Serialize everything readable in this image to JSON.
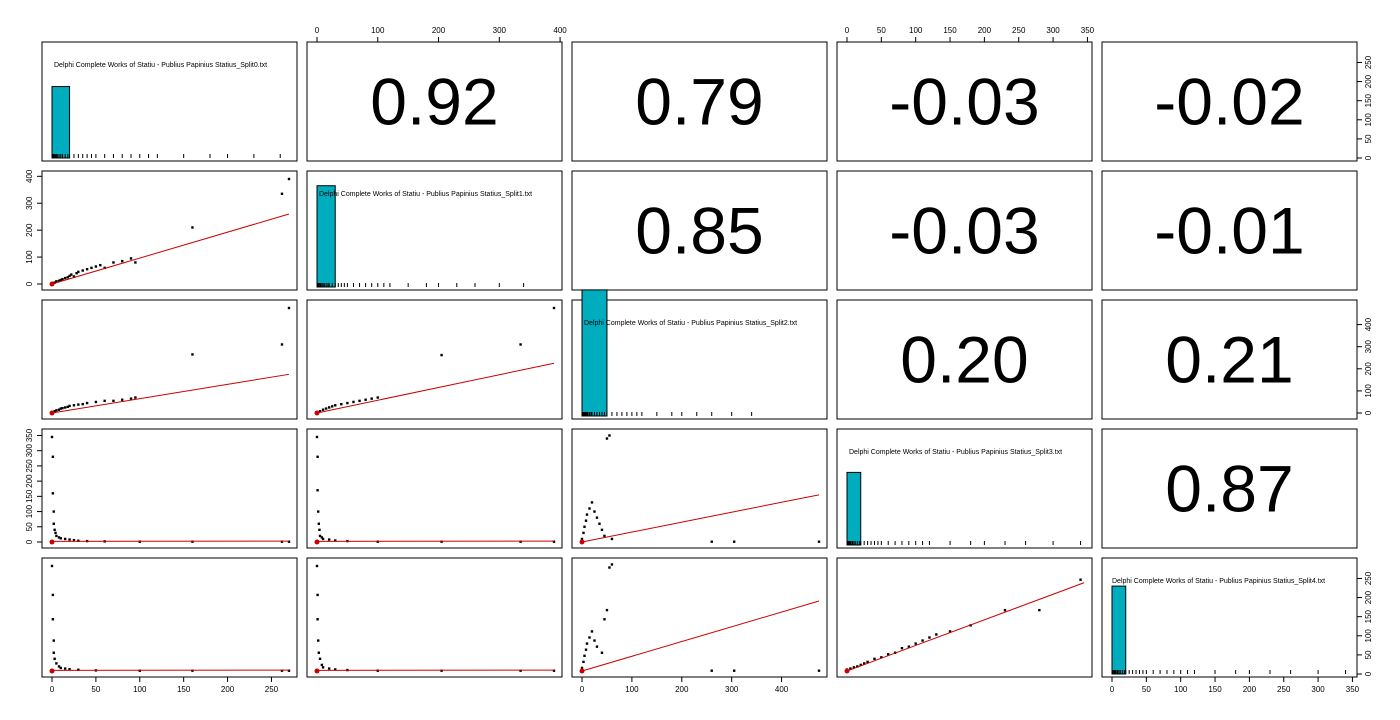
{
  "chart_data": {
    "type": "scatter",
    "plot_kind": "pairs-matrix",
    "variables": [
      {
        "name": "Delphi Complete Works of Statiu - Publius Papinius Statius_Split0.txt",
        "max": 270,
        "ticks": [
          0,
          50,
          100,
          150,
          200,
          250
        ]
      },
      {
        "name": "Delphi Complete Works of Statiu - Publius Papinius Statius_Split1.txt",
        "max": 390,
        "ticks": [
          0,
          100,
          200,
          300,
          400
        ]
      },
      {
        "name": "Delphi Complete Works of Statiu - Publius Papinius Statius_Split2.txt",
        "max": 475,
        "ticks": [
          0,
          100,
          200,
          300,
          400
        ]
      },
      {
        "name": "Delphi Complete Works of Statiu - Publius Papinius Statius_Split3.txt",
        "max": 345,
        "ticks": [
          0,
          50,
          100,
          150,
          200,
          250,
          300,
          350
        ]
      },
      {
        "name": "Delphi Complete Works of Statiu - Publius Papinius Statius_Split4.txt",
        "max": 345,
        "ticks": [
          0,
          50,
          100,
          150,
          200,
          250,
          300,
          350
        ]
      }
    ],
    "correlations": [
      {
        "row": 0,
        "col": 1,
        "value": "0.92"
      },
      {
        "row": 0,
        "col": 2,
        "value": "0.79"
      },
      {
        "row": 0,
        "col": 3,
        "value": "-0.03"
      },
      {
        "row": 0,
        "col": 4,
        "value": "-0.02"
      },
      {
        "row": 1,
        "col": 2,
        "value": "0.85"
      },
      {
        "row": 1,
        "col": 3,
        "value": "-0.03"
      },
      {
        "row": 1,
        "col": 4,
        "value": "-0.01"
      },
      {
        "row": 2,
        "col": 3,
        "value": "0.20"
      },
      {
        "row": 2,
        "col": 4,
        "value": "0.21"
      },
      {
        "row": 3,
        "col": 4,
        "value": "0.87"
      }
    ],
    "histograms": [
      {
        "var": 0,
        "bin_width": 20,
        "counts": [
          187
        ]
      },
      {
        "var": 1,
        "bin_width": 30,
        "counts": [
          265
        ]
      },
      {
        "var": 2,
        "bin_width": 50,
        "counts": [
          330
        ]
      },
      {
        "var": 3,
        "bin_width": 20,
        "counts": [
          190
        ]
      },
      {
        "var": 4,
        "bin_width": 20,
        "counts": [
          230
        ]
      }
    ],
    "hist_ylim": [
      0,
      280
    ],
    "hist_yticks": [
      0,
      50,
      100,
      150,
      200,
      250
    ],
    "scatter": [
      {
        "row": 1,
        "col": 0,
        "points": [
          [
            0,
            2
          ],
          [
            3,
            5
          ],
          [
            5,
            10
          ],
          [
            8,
            12
          ],
          [
            10,
            15
          ],
          [
            12,
            18
          ],
          [
            15,
            22
          ],
          [
            18,
            25
          ],
          [
            20,
            30
          ],
          [
            22,
            35
          ],
          [
            25,
            28
          ],
          [
            28,
            40
          ],
          [
            30,
            45
          ],
          [
            35,
            50
          ],
          [
            40,
            55
          ],
          [
            45,
            60
          ],
          [
            50,
            65
          ],
          [
            55,
            70
          ],
          [
            60,
            60
          ],
          [
            70,
            80
          ],
          [
            80,
            85
          ],
          [
            90,
            95
          ],
          [
            95,
            80
          ],
          [
            160,
            210
          ],
          [
            262,
            335
          ],
          [
            270,
            390
          ]
        ],
        "fit": [
          [
            0,
            0
          ],
          [
            270,
            260
          ]
        ]
      },
      {
        "row": 2,
        "col": 0,
        "points": [
          [
            0,
            3
          ],
          [
            3,
            8
          ],
          [
            5,
            12
          ],
          [
            8,
            15
          ],
          [
            10,
            20
          ],
          [
            12,
            22
          ],
          [
            15,
            25
          ],
          [
            18,
            28
          ],
          [
            20,
            32
          ],
          [
            25,
            35
          ],
          [
            30,
            38
          ],
          [
            35,
            40
          ],
          [
            40,
            45
          ],
          [
            50,
            50
          ],
          [
            60,
            55
          ],
          [
            70,
            55
          ],
          [
            80,
            60
          ],
          [
            90,
            65
          ],
          [
            95,
            70
          ],
          [
            160,
            265
          ],
          [
            262,
            310
          ],
          [
            270,
            475
          ]
        ],
        "fit": [
          [
            0,
            0
          ],
          [
            270,
            175
          ]
        ]
      },
      {
        "row": 2,
        "col": 1,
        "points": [
          [
            0,
            3
          ],
          [
            5,
            8
          ],
          [
            10,
            15
          ],
          [
            15,
            20
          ],
          [
            20,
            25
          ],
          [
            25,
            30
          ],
          [
            30,
            35
          ],
          [
            40,
            40
          ],
          [
            50,
            45
          ],
          [
            60,
            50
          ],
          [
            70,
            55
          ],
          [
            80,
            60
          ],
          [
            90,
            65
          ],
          [
            100,
            70
          ],
          [
            205,
            262
          ],
          [
            335,
            310
          ],
          [
            390,
            475
          ]
        ],
        "fit": [
          [
            0,
            0
          ],
          [
            390,
            225
          ]
        ]
      },
      {
        "row": 3,
        "col": 0,
        "points": [
          [
            0,
            345
          ],
          [
            1,
            280
          ],
          [
            1,
            160
          ],
          [
            2,
            100
          ],
          [
            2,
            60
          ],
          [
            3,
            40
          ],
          [
            4,
            30
          ],
          [
            5,
            20
          ],
          [
            8,
            15
          ],
          [
            10,
            12
          ],
          [
            15,
            10
          ],
          [
            20,
            8
          ],
          [
            25,
            6
          ],
          [
            30,
            4
          ],
          [
            40,
            3
          ],
          [
            60,
            2
          ],
          [
            100,
            1
          ],
          [
            160,
            1
          ],
          [
            262,
            1
          ],
          [
            270,
            1
          ]
        ],
        "fit": [
          [
            0,
            2
          ],
          [
            270,
            3
          ]
        ]
      },
      {
        "row": 3,
        "col": 1,
        "points": [
          [
            0,
            345
          ],
          [
            1,
            280
          ],
          [
            1,
            170
          ],
          [
            2,
            100
          ],
          [
            3,
            60
          ],
          [
            4,
            40
          ],
          [
            5,
            20
          ],
          [
            8,
            15
          ],
          [
            10,
            10
          ],
          [
            20,
            8
          ],
          [
            30,
            5
          ],
          [
            50,
            3
          ],
          [
            100,
            1
          ],
          [
            205,
            1
          ],
          [
            335,
            1
          ],
          [
            390,
            1
          ]
        ],
        "fit": [
          [
            0,
            2
          ],
          [
            390,
            3
          ]
        ]
      },
      {
        "row": 3,
        "col": 2,
        "points": [
          [
            0,
            10
          ],
          [
            3,
            30
          ],
          [
            5,
            50
          ],
          [
            8,
            70
          ],
          [
            10,
            90
          ],
          [
            15,
            110
          ],
          [
            20,
            130
          ],
          [
            25,
            100
          ],
          [
            30,
            80
          ],
          [
            35,
            60
          ],
          [
            40,
            40
          ],
          [
            50,
            340
          ],
          [
            55,
            350
          ],
          [
            45,
            20
          ],
          [
            60,
            10
          ],
          [
            260,
            1
          ],
          [
            305,
            1
          ],
          [
            475,
            1
          ]
        ],
        "fit": [
          [
            0,
            0
          ],
          [
            475,
            155
          ]
        ]
      },
      {
        "row": 4,
        "col": 0,
        "points": [
          [
            0,
            345
          ],
          [
            1,
            250
          ],
          [
            1,
            170
          ],
          [
            2,
            100
          ],
          [
            2,
            60
          ],
          [
            3,
            40
          ],
          [
            5,
            25
          ],
          [
            8,
            15
          ],
          [
            10,
            10
          ],
          [
            15,
            8
          ],
          [
            20,
            6
          ],
          [
            30,
            4
          ],
          [
            50,
            2
          ],
          [
            100,
            1
          ],
          [
            160,
            1
          ],
          [
            262,
            1
          ],
          [
            270,
            1
          ]
        ],
        "fit": [
          [
            0,
            2
          ],
          [
            270,
            3
          ]
        ]
      },
      {
        "row": 4,
        "col": 1,
        "points": [
          [
            0,
            345
          ],
          [
            1,
            250
          ],
          [
            1,
            170
          ],
          [
            2,
            100
          ],
          [
            3,
            60
          ],
          [
            5,
            40
          ],
          [
            8,
            20
          ],
          [
            10,
            12
          ],
          [
            20,
            8
          ],
          [
            30,
            5
          ],
          [
            50,
            3
          ],
          [
            100,
            1
          ],
          [
            205,
            1
          ],
          [
            335,
            1
          ],
          [
            390,
            1
          ]
        ],
        "fit": [
          [
            0,
            2
          ],
          [
            390,
            3
          ]
        ]
      },
      {
        "row": 4,
        "col": 2,
        "points": [
          [
            0,
            10
          ],
          [
            3,
            30
          ],
          [
            5,
            50
          ],
          [
            8,
            70
          ],
          [
            10,
            90
          ],
          [
            15,
            110
          ],
          [
            20,
            130
          ],
          [
            25,
            100
          ],
          [
            30,
            80
          ],
          [
            40,
            60
          ],
          [
            45,
            170
          ],
          [
            50,
            200
          ],
          [
            55,
            340
          ],
          [
            60,
            350
          ],
          [
            260,
            1
          ],
          [
            305,
            1
          ],
          [
            475,
            1
          ]
        ],
        "fit": [
          [
            0,
            0
          ],
          [
            475,
            230
          ]
        ]
      },
      {
        "row": 4,
        "col": 3,
        "points": [
          [
            0,
            5
          ],
          [
            5,
            8
          ],
          [
            10,
            12
          ],
          [
            15,
            15
          ],
          [
            20,
            20
          ],
          [
            25,
            25
          ],
          [
            30,
            30
          ],
          [
            40,
            40
          ],
          [
            50,
            45
          ],
          [
            60,
            55
          ],
          [
            70,
            60
          ],
          [
            80,
            75
          ],
          [
            90,
            80
          ],
          [
            100,
            90
          ],
          [
            110,
            100
          ],
          [
            120,
            110
          ],
          [
            130,
            120
          ],
          [
            150,
            130
          ],
          [
            180,
            150
          ],
          [
            230,
            200
          ],
          [
            280,
            200
          ],
          [
            340,
            300
          ]
        ],
        "fit": [
          [
            0,
            0
          ],
          [
            345,
            290
          ]
        ]
      }
    ]
  }
}
